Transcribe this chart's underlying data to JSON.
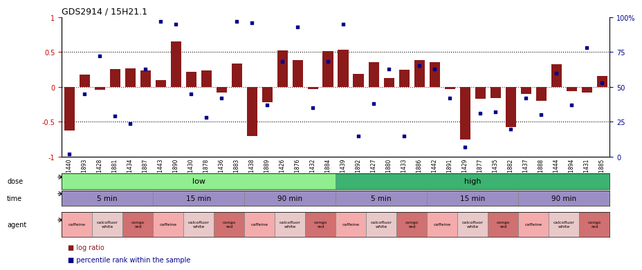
{
  "title": "GDS2914 / 15H21.1",
  "samples": [
    "GSM91440",
    "GSM91893",
    "GSM91428",
    "GSM91881",
    "GSM91434",
    "GSM91887",
    "GSM91443",
    "GSM91890",
    "GSM91430",
    "GSM91878",
    "GSM91436",
    "GSM91883",
    "GSM91438",
    "GSM91889",
    "GSM91426",
    "GSM91876",
    "GSM91432",
    "GSM91884",
    "GSM91439",
    "GSM91892",
    "GSM91427",
    "GSM91880",
    "GSM91433",
    "GSM91886",
    "GSM91442",
    "GSM91891",
    "GSM91429",
    "GSM91877",
    "GSM91435",
    "GSM91882",
    "GSM91437",
    "GSM91888",
    "GSM91444",
    "GSM91894",
    "GSM91431",
    "GSM91885"
  ],
  "log_ratio": [
    -0.62,
    0.18,
    -0.04,
    0.26,
    0.27,
    0.24,
    0.1,
    0.65,
    0.22,
    0.24,
    -0.08,
    0.33,
    -0.7,
    -0.22,
    0.52,
    0.38,
    -0.03,
    0.51,
    0.53,
    0.19,
    0.35,
    0.13,
    0.25,
    0.38,
    0.35,
    -0.03,
    -0.75,
    -0.17,
    -0.16,
    -0.57,
    -0.1,
    -0.2,
    0.32,
    -0.06,
    -0.08,
    0.16
  ],
  "percentile": [
    2,
    45,
    72,
    29,
    24,
    63,
    97,
    95,
    45,
    28,
    42,
    97,
    96,
    37,
    68,
    93,
    35,
    68,
    95,
    15,
    38,
    63,
    15,
    65,
    63,
    42,
    7,
    31,
    32,
    20,
    42,
    30,
    60,
    37,
    78,
    53
  ],
  "bar_color": "#8B1A1A",
  "point_color": "#00008B",
  "hline_color": "#CC0000",
  "dotted_color": "#000000",
  "dose_low_color": "#90EE90",
  "dose_high_color": "#3CB371",
  "time_color": "#9B8EC4",
  "agent_caffeine_color": "#F4ABAB",
  "agent_calcofluor_color": "#E8C8C8",
  "agent_congo_color": "#D07070",
  "dose_groups": [
    {
      "label": "low",
      "start": 0,
      "end": 17
    },
    {
      "label": "high",
      "start": 18,
      "end": 35
    }
  ],
  "time_groups": [
    {
      "label": "5 min",
      "start": 0,
      "end": 5
    },
    {
      "label": "15 min",
      "start": 6,
      "end": 11
    },
    {
      "label": "90 min",
      "start": 12,
      "end": 17
    },
    {
      "label": "5 min",
      "start": 18,
      "end": 23
    },
    {
      "label": "15 min",
      "start": 24,
      "end": 29
    },
    {
      "label": "90 min",
      "start": 30,
      "end": 35
    }
  ],
  "agent_groups": [
    {
      "label": "caffeine",
      "start": 0,
      "end": 1,
      "type": "caffeine"
    },
    {
      "label": "calcofluor\nwhite",
      "start": 2,
      "end": 3,
      "type": "calcofluor"
    },
    {
      "label": "congo\nred",
      "start": 4,
      "end": 5,
      "type": "congo"
    },
    {
      "label": "caffeine",
      "start": 6,
      "end": 7,
      "type": "caffeine"
    },
    {
      "label": "calcofluor\nwhite",
      "start": 8,
      "end": 9,
      "type": "calcofluor"
    },
    {
      "label": "congo\nred",
      "start": 10,
      "end": 11,
      "type": "congo"
    },
    {
      "label": "caffeine",
      "start": 12,
      "end": 13,
      "type": "caffeine"
    },
    {
      "label": "calcofluor\nwhite",
      "start": 14,
      "end": 15,
      "type": "calcofluor"
    },
    {
      "label": "congo\nred",
      "start": 16,
      "end": 17,
      "type": "congo"
    },
    {
      "label": "caffeine",
      "start": 18,
      "end": 19,
      "type": "caffeine"
    },
    {
      "label": "calcofluor\nwhite",
      "start": 20,
      "end": 21,
      "type": "calcofluor"
    },
    {
      "label": "congo\nred",
      "start": 22,
      "end": 23,
      "type": "congo"
    },
    {
      "label": "caffeine",
      "start": 24,
      "end": 25,
      "type": "caffeine"
    },
    {
      "label": "calcofluor\nwhite",
      "start": 26,
      "end": 27,
      "type": "calcofluor"
    },
    {
      "label": "congo\nred",
      "start": 28,
      "end": 29,
      "type": "congo"
    },
    {
      "label": "caffeine",
      "start": 30,
      "end": 31,
      "type": "caffeine"
    },
    {
      "label": "calcofluor\nwhite",
      "start": 32,
      "end": 33,
      "type": "calcofluor"
    },
    {
      "label": "congo\nred",
      "start": 34,
      "end": 35,
      "type": "congo"
    }
  ],
  "ylim": [
    -1.0,
    1.0
  ],
  "right_ylim": [
    0,
    100
  ],
  "right_yticks": [
    0,
    25,
    50,
    75,
    100
  ],
  "right_yticklabels": [
    "0",
    "25",
    "50",
    "75",
    "100%"
  ]
}
